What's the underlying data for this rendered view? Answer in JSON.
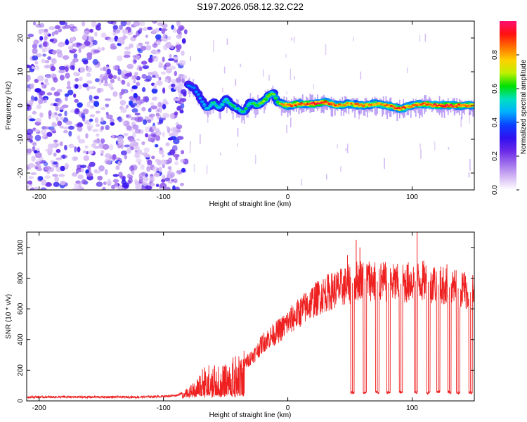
{
  "title": "S197.2026.058.12.32.C22",
  "chart_data": [
    {
      "type": "heatmap",
      "title": "S197.2026.058.12.32.C22",
      "xlabel": "Height of straight line (km)",
      "ylabel": "Frequency (Hz)",
      "xlim": [
        -210,
        150
      ],
      "ylim": [
        -25,
        25
      ],
      "xticks": [
        -200,
        -100,
        0,
        100
      ],
      "xtick_labels": [
        "-200",
        "-100",
        "0",
        "100"
      ],
      "yticks": [
        -20,
        -10,
        0,
        10,
        20
      ],
      "ytick_labels": [
        "-20",
        "-10",
        "0",
        "10",
        "20"
      ],
      "colorbar": {
        "label": "Normalized spectral amplitude",
        "range": [
          0,
          1
        ],
        "ticks": [
          0,
          0.2,
          0.4,
          0.6,
          0.8
        ],
        "tick_labels": [
          "0.0",
          "0.2",
          "0.4",
          "0.6",
          "0.8"
        ],
        "colormap": [
          "#ffffff",
          "#d4b8f4",
          "#a070ec",
          "#6a2ae8",
          "#3010f0",
          "#0a40ff",
          "#00b0ff",
          "#00e0c0",
          "#00e000",
          "#c0f000",
          "#ffd000",
          "#ff7000",
          "#ff1010",
          "#ff1070"
        ]
      },
      "ridge": {
        "x": [
          -80,
          -75,
          -70,
          -65,
          -60,
          -55,
          -50,
          -45,
          -40,
          -35,
          -30,
          -25,
          -20,
          -15,
          -12,
          -8,
          -5,
          0,
          10,
          20,
          30,
          40,
          50,
          60,
          70,
          80,
          90,
          100,
          110,
          120,
          130,
          140,
          150
        ],
        "freq": [
          6,
          5,
          2,
          -1,
          1,
          -1,
          2,
          0,
          -1,
          -2,
          1,
          0,
          1,
          3,
          4,
          1,
          0.5,
          0,
          0.5,
          0.5,
          1,
          0,
          0.5,
          0,
          0.5,
          0,
          -1,
          0,
          0.5,
          0,
          0,
          0,
          0
        ],
        "amplitude": [
          0.3,
          0.3,
          0.35,
          0.4,
          0.45,
          0.45,
          0.45,
          0.5,
          0.45,
          0.5,
          0.5,
          0.55,
          0.6,
          0.65,
          0.55,
          0.6,
          0.75,
          0.85,
          0.9,
          0.95,
          0.95,
          0.85,
          0.8,
          0.85,
          0.8,
          0.85,
          0.9,
          0.8,
          0.9,
          0.95,
          0.95,
          0.9,
          0.85
        ]
      },
      "noise_region_x": [
        -210,
        -82
      ],
      "noise_amplitude_max": 0.3
    },
    {
      "type": "line",
      "xlabel": "Height of straight line (km)",
      "ylabel": "SNR (10 * v/v)",
      "xlim": [
        -210,
        150
      ],
      "ylim": [
        0,
        1100
      ],
      "xticks": [
        -200,
        -100,
        0,
        100
      ],
      "xtick_labels": [
        "-200",
        "-100",
        "0",
        "100"
      ],
      "yticks": [
        0,
        200,
        400,
        600,
        800,
        1000
      ],
      "ytick_labels": [
        "0",
        "200",
        "400",
        "600",
        "800",
        "1000"
      ],
      "color": "#ee2020",
      "series": [
        {
          "name": "SNR",
          "x": [
            -210,
            -180,
            -150,
            -120,
            -100,
            -90,
            -85,
            -80,
            -75,
            -70,
            -65,
            -60,
            -55,
            -50,
            -45,
            -40,
            -35,
            -30,
            -25,
            -20,
            -15,
            -10,
            -5,
            0,
            10,
            20,
            30,
            40,
            50,
            60,
            70,
            80,
            90,
            100,
            110,
            120,
            130,
            140,
            150
          ],
          "values": [
            25,
            25,
            25,
            25,
            30,
            35,
            50,
            60,
            90,
            140,
            180,
            180,
            160,
            170,
            200,
            220,
            240,
            280,
            320,
            380,
            410,
            440,
            470,
            510,
            580,
            650,
            700,
            730,
            760,
            800,
            780,
            770,
            760,
            780,
            780,
            760,
            740,
            730,
            700
          ]
        }
      ],
      "dropouts": [
        {
          "x": 52,
          "value": 55
        },
        {
          "x": 62,
          "value": 55
        },
        {
          "x": 72,
          "value": 55
        },
        {
          "x": 81,
          "value": 55
        },
        {
          "x": 91,
          "value": 55
        },
        {
          "x": 103,
          "value": 55
        },
        {
          "x": 113,
          "value": 55
        },
        {
          "x": 121,
          "value": 55
        },
        {
          "x": 130,
          "value": 55
        },
        {
          "x": 137,
          "value": 55
        },
        {
          "x": 147,
          "value": 55
        }
      ],
      "spikes": [
        {
          "x": 48,
          "value": 950
        },
        {
          "x": 55,
          "value": 1050
        },
        {
          "x": 58,
          "value": 1000
        },
        {
          "x": 104,
          "value": 1100
        },
        {
          "x": 128,
          "value": 890
        },
        {
          "x": 142,
          "value": 840
        }
      ]
    }
  ]
}
